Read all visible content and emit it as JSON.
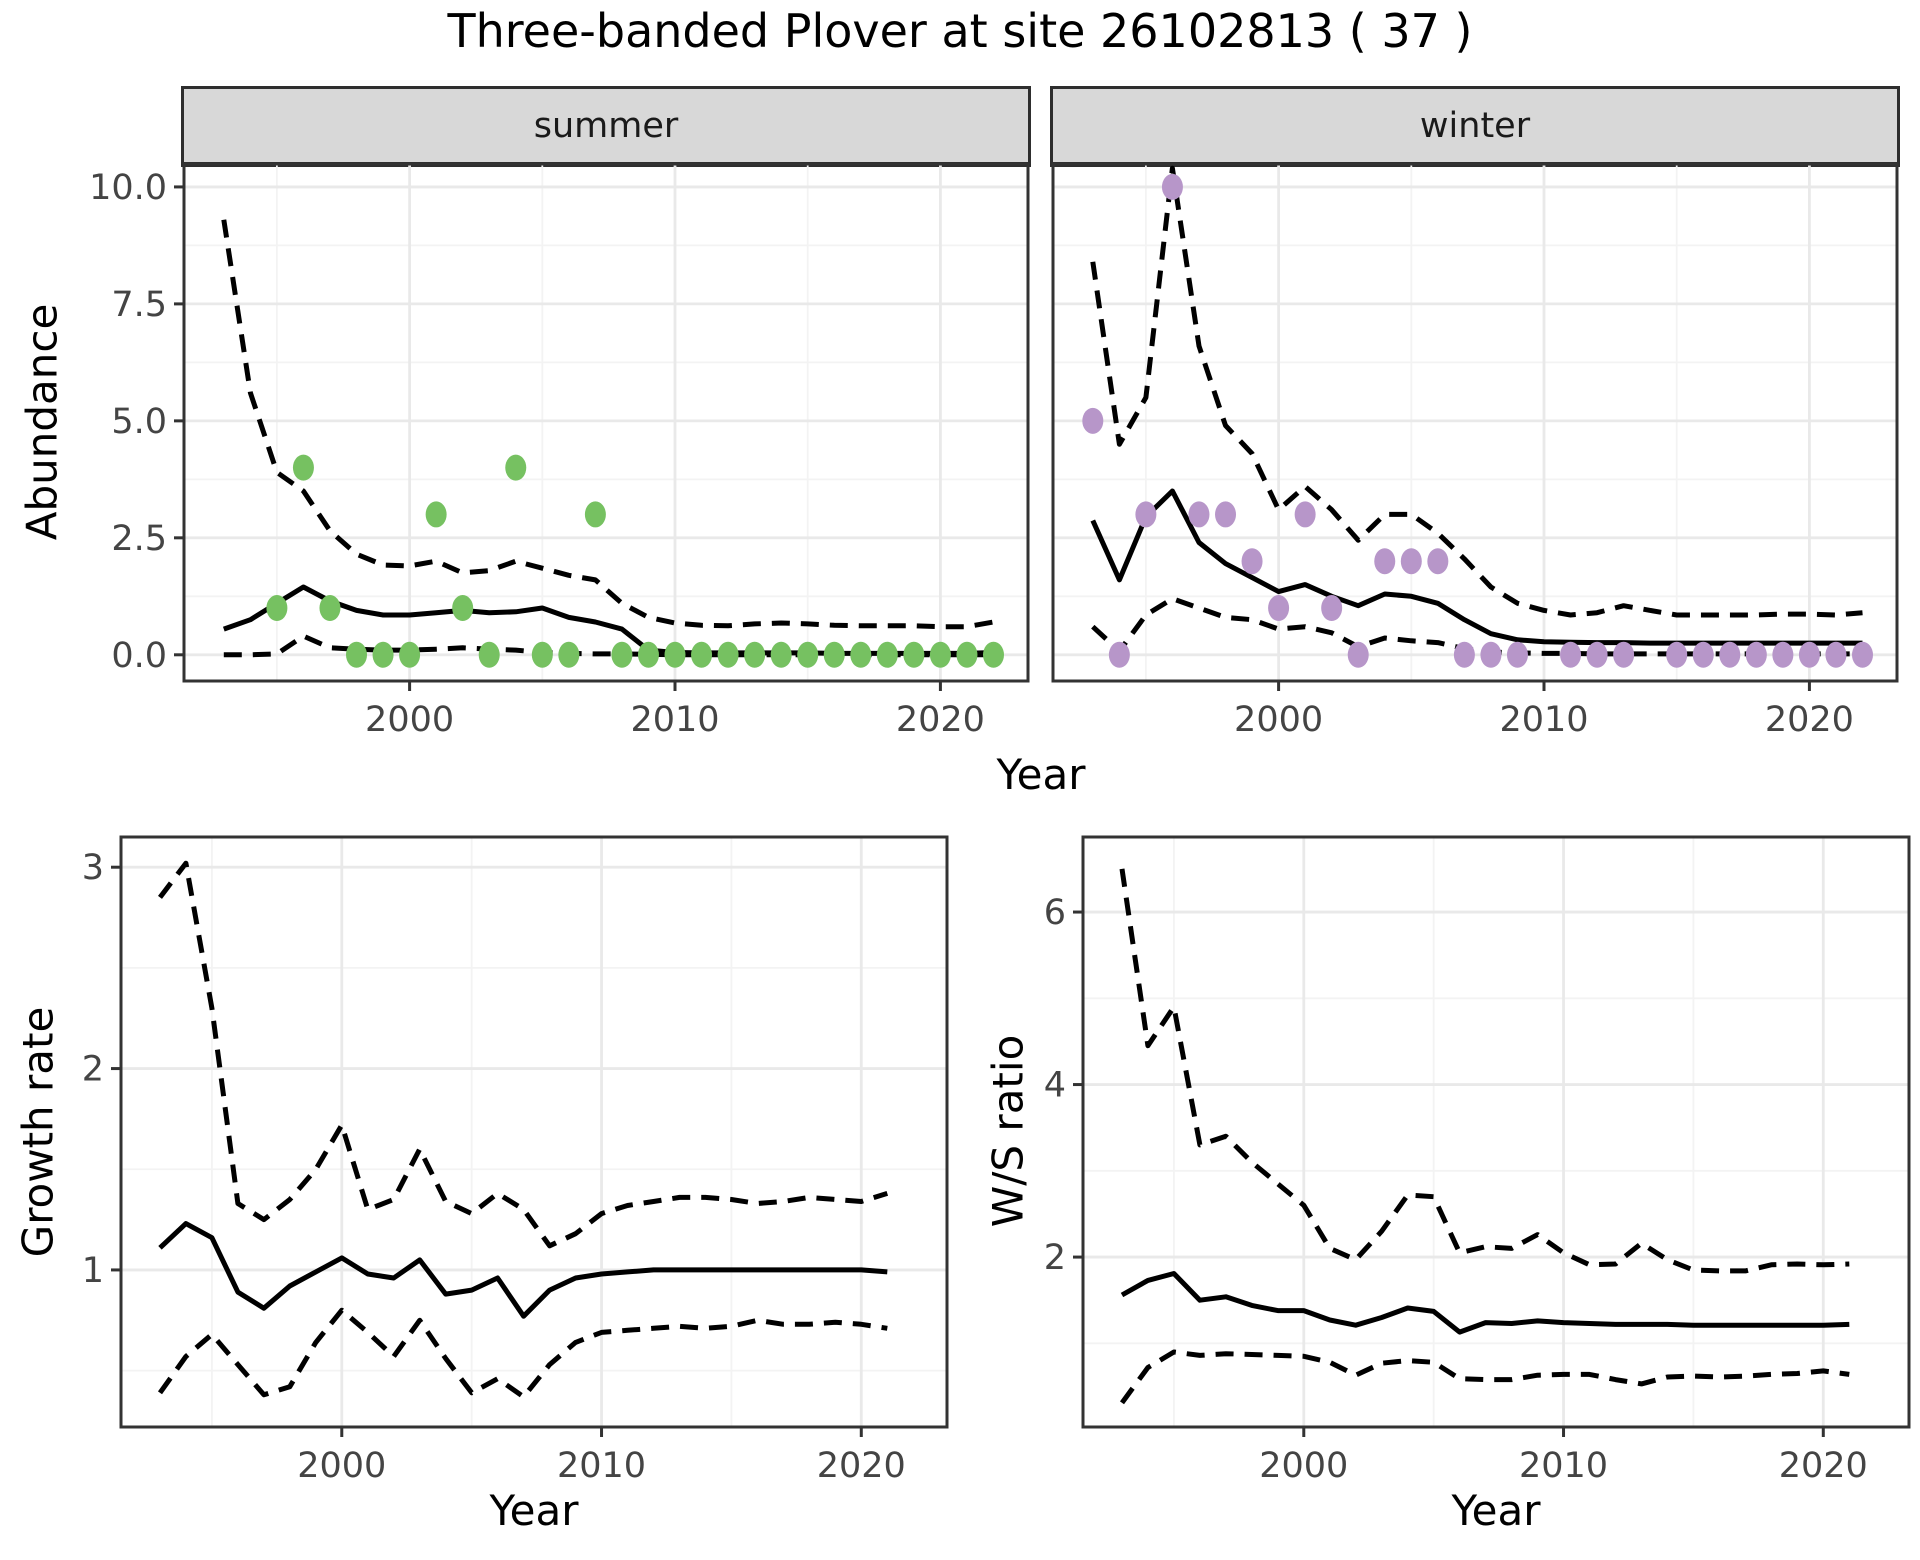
{
  "title": "Three-banded Plover at site 26102813 ( 37 )",
  "facets": {
    "summer": "summer",
    "winter": "winter"
  },
  "axis_titles": {
    "abundance": "Abundance",
    "growth_rate": "Growth rate",
    "ws_ratio": "W/S ratio",
    "year": "Year"
  },
  "colors": {
    "summer_point": "#76c161",
    "winter_point": "#b796c9",
    "line": "#000000",
    "grid_major": "#e9e9e9",
    "grid_minor": "#f3f3f3",
    "strip_bg": "#d8d8d8",
    "panel_border": "#333333",
    "tick": "#333333",
    "axis_text": "#444444",
    "title_text": "#000000"
  },
  "chart_data": [
    {
      "id": "summer",
      "type": "line",
      "facet_label": "summer",
      "xlabel": "Year",
      "ylabel": "Abundance",
      "x_start_year": 1993,
      "xlim": [
        1991.5,
        2023.3
      ],
      "ylim": [
        -0.56,
        10.49
      ],
      "x_major_ticks": [
        2000,
        2010,
        2020
      ],
      "x_tick_labels": [
        "2000",
        "2010",
        "2020"
      ],
      "x_minor": [
        1995,
        2005,
        2015
      ],
      "y_major_ticks": [
        0,
        2.5,
        5,
        7.5,
        10
      ],
      "y_tick_labels": [
        "0.0",
        "2.5",
        "5.0",
        "7.5",
        "10.0"
      ],
      "y_minor": [
        1.25,
        3.75,
        6.25,
        8.75
      ],
      "grid": true,
      "legend": "none",
      "series": [
        {
          "name": "lower-95ci",
          "style": "dashed",
          "color": "#000000",
          "values": [
            0,
            0,
            0.02,
            0.4,
            0.15,
            0.12,
            0.1,
            0.1,
            0.12,
            0.15,
            0.12,
            0.1,
            0.05,
            0.03,
            0.02,
            0.02,
            0.01,
            0,
            0,
            0,
            0,
            0,
            0,
            0,
            0,
            0,
            0,
            0,
            0,
            0
          ]
        },
        {
          "name": "upper-95ci",
          "style": "dashed",
          "color": "#000000",
          "values": [
            9.3,
            5.6,
            3.9,
            3.5,
            2.65,
            2.15,
            1.92,
            1.9,
            2.0,
            1.75,
            1.8,
            2.0,
            1.85,
            1.7,
            1.6,
            1.1,
            0.8,
            0.68,
            0.63,
            0.62,
            0.66,
            0.68,
            0.66,
            0.63,
            0.62,
            0.62,
            0.62,
            0.6,
            0.6,
            0.7
          ]
        },
        {
          "name": "modelled-abundance",
          "style": "solid",
          "color": "#000000",
          "values": [
            0.55,
            0.75,
            1.1,
            1.45,
            1.15,
            0.95,
            0.85,
            0.85,
            0.9,
            0.95,
            0.9,
            0.92,
            1.0,
            0.8,
            0.7,
            0.55,
            0.1,
            0.05,
            0.04,
            0.04,
            0.04,
            0.04,
            0.04,
            0.03,
            0.03,
            0.03,
            0.03,
            0.03,
            0.03,
            0.05
          ]
        },
        {
          "name": "observed-counts",
          "style": "points",
          "color": "#76c161",
          "values": [
            null,
            null,
            1,
            4,
            1,
            0,
            0,
            0,
            3,
            1,
            0,
            4,
            0,
            0,
            3,
            0,
            0,
            0,
            0,
            0,
            0,
            0,
            0,
            0,
            0,
            0,
            0,
            0,
            0,
            0
          ]
        }
      ]
    },
    {
      "id": "winter",
      "type": "line",
      "facet_label": "winter",
      "xlabel": "Year",
      "ylabel": "Abundance",
      "x_start_year": 1993,
      "xlim": [
        1991.5,
        2023.3
      ],
      "ylim": [
        -0.56,
        10.49
      ],
      "x_major_ticks": [
        2000,
        2010,
        2020
      ],
      "x_tick_labels": [
        "2000",
        "2010",
        "2020"
      ],
      "x_minor": [
        1995,
        2005,
        2015
      ],
      "y_major_ticks": [
        0,
        2.5,
        5,
        7.5,
        10
      ],
      "y_tick_labels": null,
      "y_minor": [
        1.25,
        3.75,
        6.25,
        8.75
      ],
      "grid": true,
      "legend": "none",
      "series": [
        {
          "name": "lower-95ci",
          "style": "dashed",
          "color": "#000000",
          "values": [
            0.6,
            0.08,
            0.85,
            1.2,
            1.0,
            0.8,
            0.75,
            0.55,
            0.6,
            0.47,
            0.17,
            0.36,
            0.3,
            0.26,
            0.13,
            0.06,
            0.04,
            0.03,
            0.03,
            0.02,
            0.02,
            0.02,
            0.02,
            0.02,
            0.02,
            0.02,
            0.02,
            0.02,
            0.02,
            0.02
          ]
        },
        {
          "name": "upper-95ci",
          "style": "dashed",
          "color": "#000000",
          "values": [
            8.4,
            4.5,
            5.5,
            10.4,
            6.6,
            4.9,
            4.3,
            3.1,
            3.6,
            3.1,
            2.45,
            3.0,
            3.0,
            2.6,
            2.05,
            1.45,
            1.1,
            0.95,
            0.85,
            0.9,
            1.05,
            0.95,
            0.85,
            0.85,
            0.85,
            0.85,
            0.87,
            0.87,
            0.85,
            0.9
          ]
        },
        {
          "name": "modelled-abundance",
          "style": "solid",
          "color": "#000000",
          "values": [
            2.87,
            1.6,
            2.95,
            3.5,
            2.4,
            1.95,
            1.65,
            1.35,
            1.5,
            1.25,
            1.05,
            1.3,
            1.25,
            1.1,
            0.75,
            0.45,
            0.32,
            0.28,
            0.27,
            0.26,
            0.26,
            0.25,
            0.25,
            0.25,
            0.25,
            0.25,
            0.25,
            0.25,
            0.25,
            0.25
          ]
        },
        {
          "name": "observed-counts",
          "style": "points",
          "color": "#b796c9",
          "values": [
            5,
            0,
            3,
            10,
            3,
            3,
            2,
            1,
            3,
            1,
            0,
            2,
            2,
            2,
            0,
            0,
            0,
            null,
            0,
            0,
            0,
            null,
            0,
            0,
            0,
            0,
            0,
            0,
            0,
            0
          ]
        }
      ]
    },
    {
      "id": "growth",
      "type": "line",
      "facet_label": null,
      "xlabel": "Year",
      "ylabel": "Growth rate",
      "x_start_year": 1993,
      "xlim": [
        1991.5,
        2023.3
      ],
      "ylim": [
        0.22,
        3.15
      ],
      "x_major_ticks": [
        2000,
        2010,
        2020
      ],
      "x_tick_labels": [
        "2000",
        "2010",
        "2020"
      ],
      "x_minor": [
        1995,
        2005,
        2015
      ],
      "y_major_ticks": [
        1,
        2,
        3
      ],
      "y_tick_labels": [
        "1",
        "2",
        "3"
      ],
      "y_minor": [
        0.5,
        1.5,
        2.5
      ],
      "grid": true,
      "legend": "none",
      "series": [
        {
          "name": "lower-95ci",
          "style": "dashed",
          "color": "#000000",
          "values": [
            0.39,
            0.57,
            0.68,
            0.53,
            0.38,
            0.42,
            0.64,
            0.8,
            0.69,
            0.57,
            0.75,
            0.56,
            0.39,
            0.46,
            0.37,
            0.53,
            0.64,
            0.69,
            0.7,
            0.71,
            0.72,
            0.71,
            0.72,
            0.75,
            0.73,
            0.73,
            0.74,
            0.73,
            0.71
          ]
        },
        {
          "name": "upper-95ci",
          "style": "dashed",
          "color": "#000000",
          "values": [
            2.85,
            3.02,
            2.3,
            1.33,
            1.25,
            1.35,
            1.5,
            1.72,
            1.3,
            1.35,
            1.6,
            1.34,
            1.28,
            1.38,
            1.3,
            1.12,
            1.18,
            1.28,
            1.32,
            1.34,
            1.36,
            1.36,
            1.35,
            1.33,
            1.34,
            1.36,
            1.35,
            1.34,
            1.38
          ]
        },
        {
          "name": "growth-rate",
          "style": "solid",
          "color": "#000000",
          "values": [
            1.11,
            1.23,
            1.16,
            0.89,
            0.81,
            0.92,
            0.99,
            1.06,
            0.98,
            0.96,
            1.05,
            0.88,
            0.9,
            0.96,
            0.77,
            0.9,
            0.96,
            0.98,
            0.99,
            1.0,
            1.0,
            1.0,
            1.0,
            1.0,
            1.0,
            1.0,
            1.0,
            1.0,
            0.99
          ]
        }
      ]
    },
    {
      "id": "ws",
      "type": "line",
      "facet_label": null,
      "xlabel": "Year",
      "ylabel": "W/S ratio",
      "x_start_year": 1993,
      "xlim": [
        1991.5,
        2023.3
      ],
      "ylim": [
        0.03,
        6.87
      ],
      "x_major_ticks": [
        2000,
        2010,
        2020
      ],
      "x_tick_labels": [
        "2000",
        "2010",
        "2020"
      ],
      "x_minor": [
        1995,
        2005,
        2015
      ],
      "y_major_ticks": [
        2,
        4,
        6
      ],
      "y_tick_labels": [
        "2",
        "4",
        "6"
      ],
      "y_minor": [
        1,
        3,
        5
      ],
      "grid": true,
      "legend": "none",
      "series": [
        {
          "name": "lower-95ci",
          "style": "dashed",
          "color": "#000000",
          "values": [
            0.31,
            0.72,
            0.9,
            0.86,
            0.88,
            0.87,
            0.86,
            0.85,
            0.78,
            0.63,
            0.77,
            0.8,
            0.78,
            0.59,
            0.58,
            0.58,
            0.63,
            0.64,
            0.64,
            0.58,
            0.53,
            0.61,
            0.62,
            0.61,
            0.62,
            0.64,
            0.65,
            0.68,
            0.64
          ]
        },
        {
          "name": "upper-95ci",
          "style": "dashed",
          "color": "#000000",
          "values": [
            6.5,
            4.45,
            4.9,
            3.3,
            3.4,
            3.1,
            2.85,
            2.6,
            2.1,
            1.97,
            2.3,
            2.72,
            2.7,
            2.05,
            2.12,
            2.1,
            2.26,
            2.05,
            1.91,
            1.92,
            2.16,
            1.97,
            1.85,
            1.84,
            1.84,
            1.91,
            1.92,
            1.91,
            1.92
          ]
        },
        {
          "name": "ws-ratio",
          "style": "solid",
          "color": "#000000",
          "values": [
            1.56,
            1.73,
            1.81,
            1.5,
            1.54,
            1.44,
            1.38,
            1.38,
            1.27,
            1.21,
            1.3,
            1.41,
            1.37,
            1.13,
            1.24,
            1.23,
            1.26,
            1.24,
            1.23,
            1.22,
            1.22,
            1.22,
            1.21,
            1.21,
            1.21,
            1.21,
            1.21,
            1.21,
            1.22
          ]
        }
      ]
    }
  ]
}
